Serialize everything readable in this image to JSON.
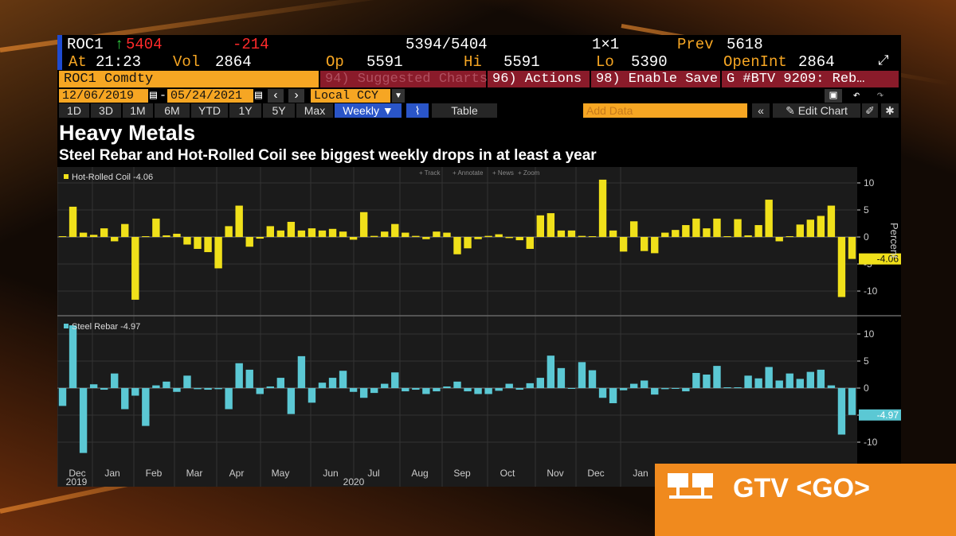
{
  "quote": {
    "ticker": "ROC1",
    "last": "5404",
    "change": "-214",
    "bid_ask": "5394/5404",
    "size": "1×1",
    "prev_label": "Prev",
    "prev": "5618",
    "at_label": "At",
    "time": "21:23",
    "vol_label": "Vol",
    "vol": "2864",
    "open_label": "Op",
    "open": "5591",
    "high_label": "Hi",
    "high": "5591",
    "low_label": "Lo",
    "low": "5390",
    "oi_label": "OpenInt",
    "oi": "2864"
  },
  "command": {
    "security": "ROC1 Comdty",
    "suggested": "94) Suggested Charts",
    "actions": "96) Actions",
    "enable_save": "98) Enable Save",
    "gtv": "G #BTV 9209: Reb…"
  },
  "dates": {
    "start": "12/06/2019",
    "end": "05/24/2021",
    "currency": "Local CCY"
  },
  "toolbar": {
    "ranges": [
      "1D",
      "3D",
      "1M",
      "6M",
      "YTD",
      "1Y",
      "5Y",
      "Max"
    ],
    "period": "Weekly",
    "table": "Table",
    "add_data": "Add Data",
    "edit_chart": "Edit Chart",
    "panel_tools": [
      "Track",
      "Annotate",
      "News",
      "Zoom"
    ]
  },
  "colors": {
    "accent": "#f6a623",
    "coil": "#f0e01a",
    "rebar": "#5bc8d4",
    "gtv": "#f08a1e"
  },
  "footer": {
    "gtv": "GTV <GO>"
  },
  "chart_data": [
    {
      "type": "bar",
      "title": "Heavy Metals",
      "subtitle": "Steel Rebar and Hot-Rolled Coil see biggest weekly drops in at least a year",
      "ylabel": "Percent",
      "ylim": [
        -15,
        12
      ],
      "yticks": [
        10,
        5,
        0,
        -5,
        -10
      ],
      "series": [
        {
          "name": "Hot-Rolled Coil",
          "legend": "Hot-Rolled Coil -4.06",
          "last_label": "-4.06",
          "values": [
            0.1,
            5.6,
            0.8,
            0.4,
            1.6,
            -0.8,
            2.4,
            -11.6,
            0.1,
            3.4,
            0.3,
            0.6,
            -1.4,
            -2.2,
            -2.8,
            -5.8,
            2.0,
            5.8,
            -1.8,
            -0.3,
            2.0,
            1.2,
            2.8,
            1.2,
            1.6,
            1.2,
            1.5,
            1.0,
            -0.5,
            4.6,
            0.2,
            1.0,
            2.4,
            0.8,
            0.2,
            -0.4,
            1.0,
            0.8,
            -3.2,
            -2.1,
            -0.4,
            0.2,
            0.5,
            -0.2,
            -0.6,
            -2.2,
            4.0,
            4.4,
            1.2,
            1.2,
            0.2,
            0.1,
            10.6,
            1.2,
            -2.7,
            2.9,
            -2.6,
            -3.0,
            0.8,
            1.3,
            2.2,
            3.4,
            1.6,
            3.4,
            0.0,
            3.3,
            0.3,
            2.2,
            6.9,
            -0.8,
            0.1,
            2.3,
            3.2,
            3.9,
            5.8,
            -11.1,
            -4.06
          ]
        },
        {
          "name": "Steel Rebar",
          "legend": "Steel Rebar -4.97",
          "last_label": "-4.97",
          "values": [
            -3.3,
            11.6,
            -12.0,
            0.7,
            -0.3,
            2.7,
            -3.9,
            -1.4,
            -7.0,
            0.5,
            1.2,
            -0.7,
            2.3,
            -0.2,
            -0.3,
            -0.2,
            -3.9,
            4.6,
            3.4,
            -1.1,
            0.3,
            1.9,
            -4.8,
            5.9,
            -2.7,
            1.0,
            1.9,
            3.2,
            -0.7,
            -1.8,
            -0.9,
            0.8,
            2.9,
            -0.6,
            -0.3,
            -1.1,
            -0.6,
            0.3,
            1.2,
            -0.6,
            -1.1,
            -1.1,
            -0.5,
            0.8,
            -0.3,
            0.9,
            1.9,
            6.0,
            3.7,
            -0.1,
            4.8,
            3.3,
            -1.8,
            -2.8,
            -0.4,
            0.8,
            1.4,
            -1.2,
            -0.2,
            -0.1,
            -0.6,
            2.8,
            2.5,
            4.1,
            0.0,
            0.1,
            2.3,
            1.8,
            3.9,
            1.4,
            2.7,
            1.7,
            3.0,
            3.4,
            0.5,
            -8.6,
            -4.97
          ]
        }
      ],
      "x_month_labels": [
        "Dec",
        "Jan",
        "Feb",
        "Mar",
        "Apr",
        "May",
        "Jun",
        "Jul",
        "Aug",
        "Sep",
        "Oct",
        "Nov",
        "Dec",
        "Jan"
      ],
      "x_year_labels": [
        "2019",
        "2020"
      ]
    }
  ]
}
